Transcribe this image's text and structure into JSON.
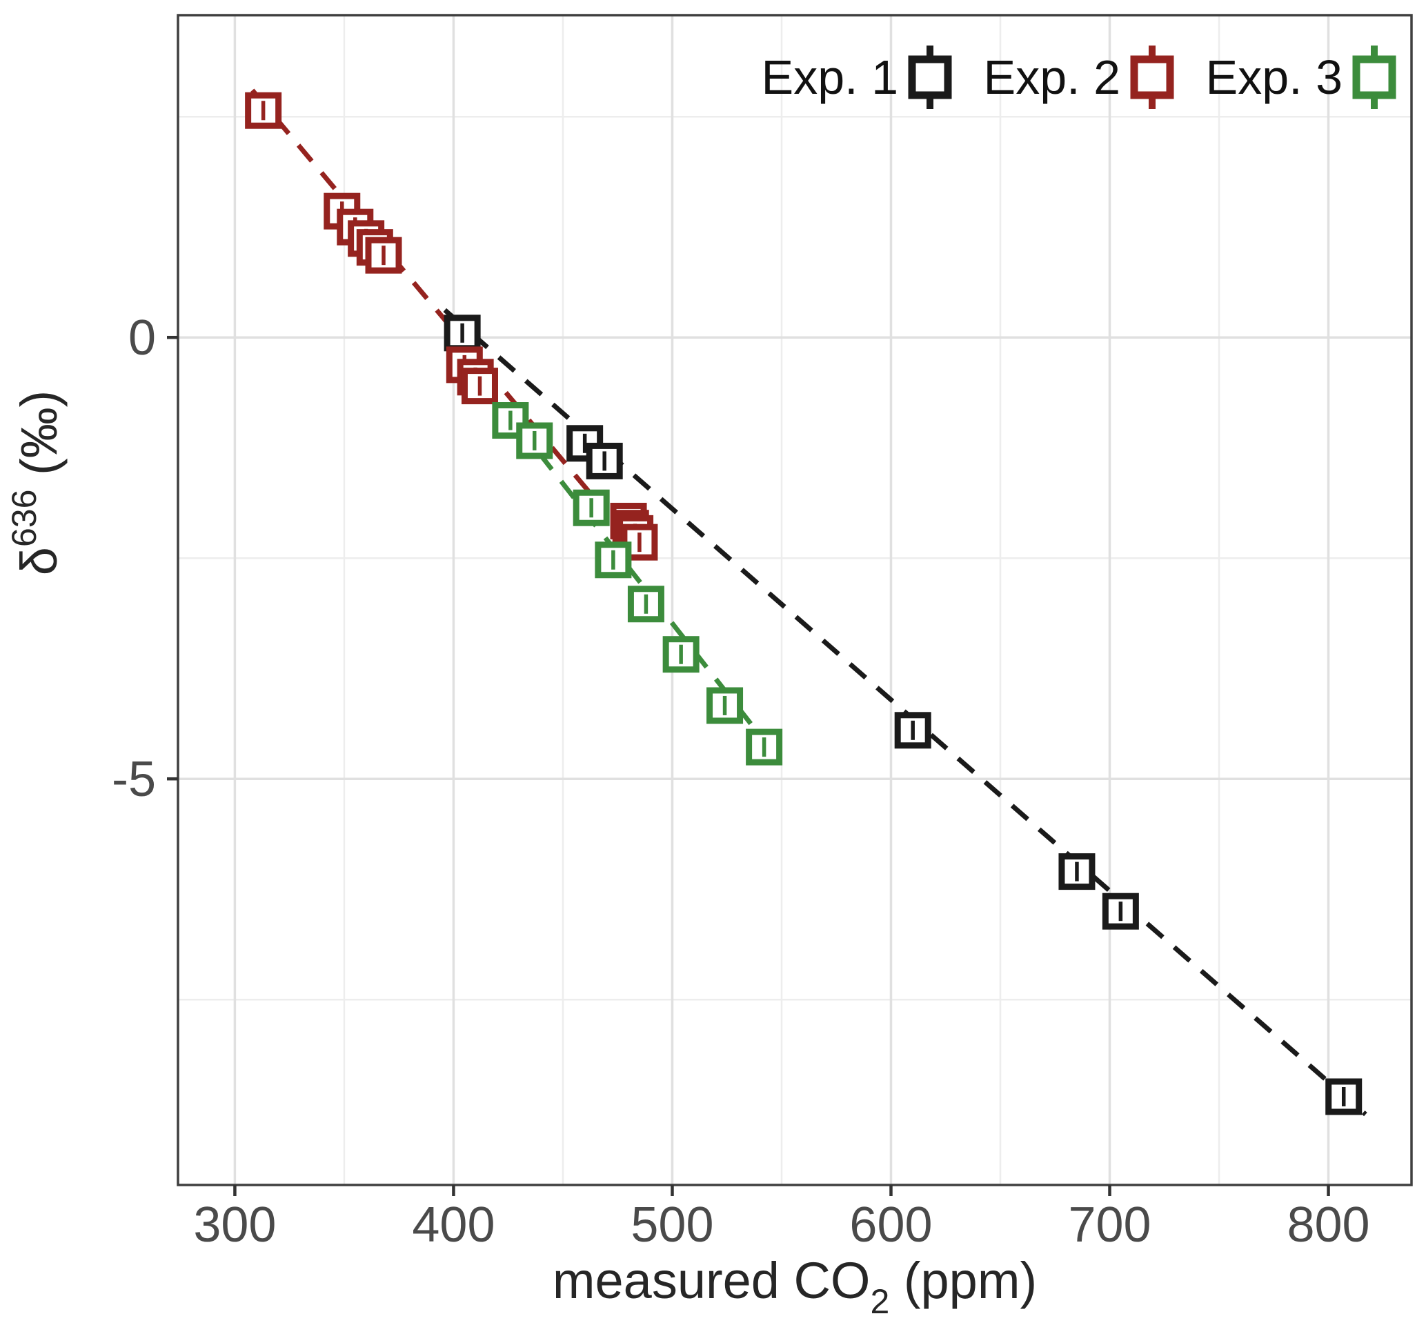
{
  "chart_data": {
    "type": "scatter",
    "title": "",
    "xlabel_parts": [
      {
        "text": "measured CO"
      },
      {
        "text": "2",
        "baseline": "sub"
      },
      {
        "text": " (ppm)"
      }
    ],
    "ylabel_parts": [
      {
        "text": "δ"
      },
      {
        "text": "636",
        "baseline": "sup"
      },
      {
        "text": " (‰)"
      }
    ],
    "xlim": [
      274,
      838
    ],
    "ylim": [
      -9.6,
      3.65
    ],
    "x_major_ticks": [
      300,
      400,
      500,
      600,
      700,
      800
    ],
    "x_minor_ticks": [
      350,
      450,
      550,
      650,
      750
    ],
    "x_tick_labels": [
      "300",
      "400",
      "500",
      "600",
      "700",
      "800"
    ],
    "y_major_ticks": [
      0,
      -5
    ],
    "y_minor_ticks": [
      2.5,
      -2.5,
      -7.5
    ],
    "y_tick_labels": [
      "0",
      "-5"
    ],
    "grid": true,
    "legend_position": "top-right-inside",
    "series": [
      {
        "name": "Exp. 1",
        "color": "#1a1a1a",
        "marker": "open-square-with-errorbar",
        "points": [
          [
            404,
            0.05
          ],
          [
            460,
            -1.2
          ],
          [
            469,
            -1.4
          ],
          [
            610,
            -4.45
          ],
          [
            685,
            -6.05
          ],
          [
            705,
            -6.5
          ],
          [
            807,
            -8.6
          ]
        ],
        "trend": {
          "style": "dashed",
          "x": [
            396,
            817
          ],
          "y": [
            0.31,
            -8.8
          ]
        }
      },
      {
        "name": "Exp. 2",
        "color": "#95231f",
        "marker": "open-square-with-errorbar",
        "points": [
          [
            313,
            2.57
          ],
          [
            349,
            1.43
          ],
          [
            355,
            1.25
          ],
          [
            360,
            1.12
          ],
          [
            364,
            1.02
          ],
          [
            368,
            0.93
          ],
          [
            405,
            -0.31
          ],
          [
            410,
            -0.45
          ],
          [
            412,
            -0.55
          ],
          [
            480,
            -2.08
          ],
          [
            481,
            -2.16
          ],
          [
            483,
            -2.22
          ],
          [
            485,
            -2.32
          ]
        ],
        "trend": {
          "style": "dashed",
          "x": [
            308,
            462
          ],
          "y": [
            2.8,
            -1.75
          ]
        }
      },
      {
        "name": "Exp. 3",
        "color": "#3c8c3c",
        "marker": "open-square-with-errorbar",
        "points": [
          [
            426,
            -0.94
          ],
          [
            437,
            -1.17
          ],
          [
            463,
            -1.93
          ],
          [
            473,
            -2.52
          ],
          [
            488,
            -3.02
          ],
          [
            504,
            -3.59
          ],
          [
            524,
            -4.17
          ],
          [
            542,
            -4.64
          ]
        ],
        "trend": {
          "style": "dashed",
          "x": [
            429,
            549
          ],
          "y": [
            -0.99,
            -4.79
          ]
        }
      }
    ],
    "style": {
      "grid_major_color": "#e0e0e0",
      "grid_minor_color": "#ededed",
      "panel_border_color": "#3f3f3f",
      "tick_color": "#333333",
      "tick_label_color": "#4a4a4a",
      "axis_title_color": "#262626",
      "legend_text_color": "#111111",
      "background": "#ffffff"
    }
  }
}
